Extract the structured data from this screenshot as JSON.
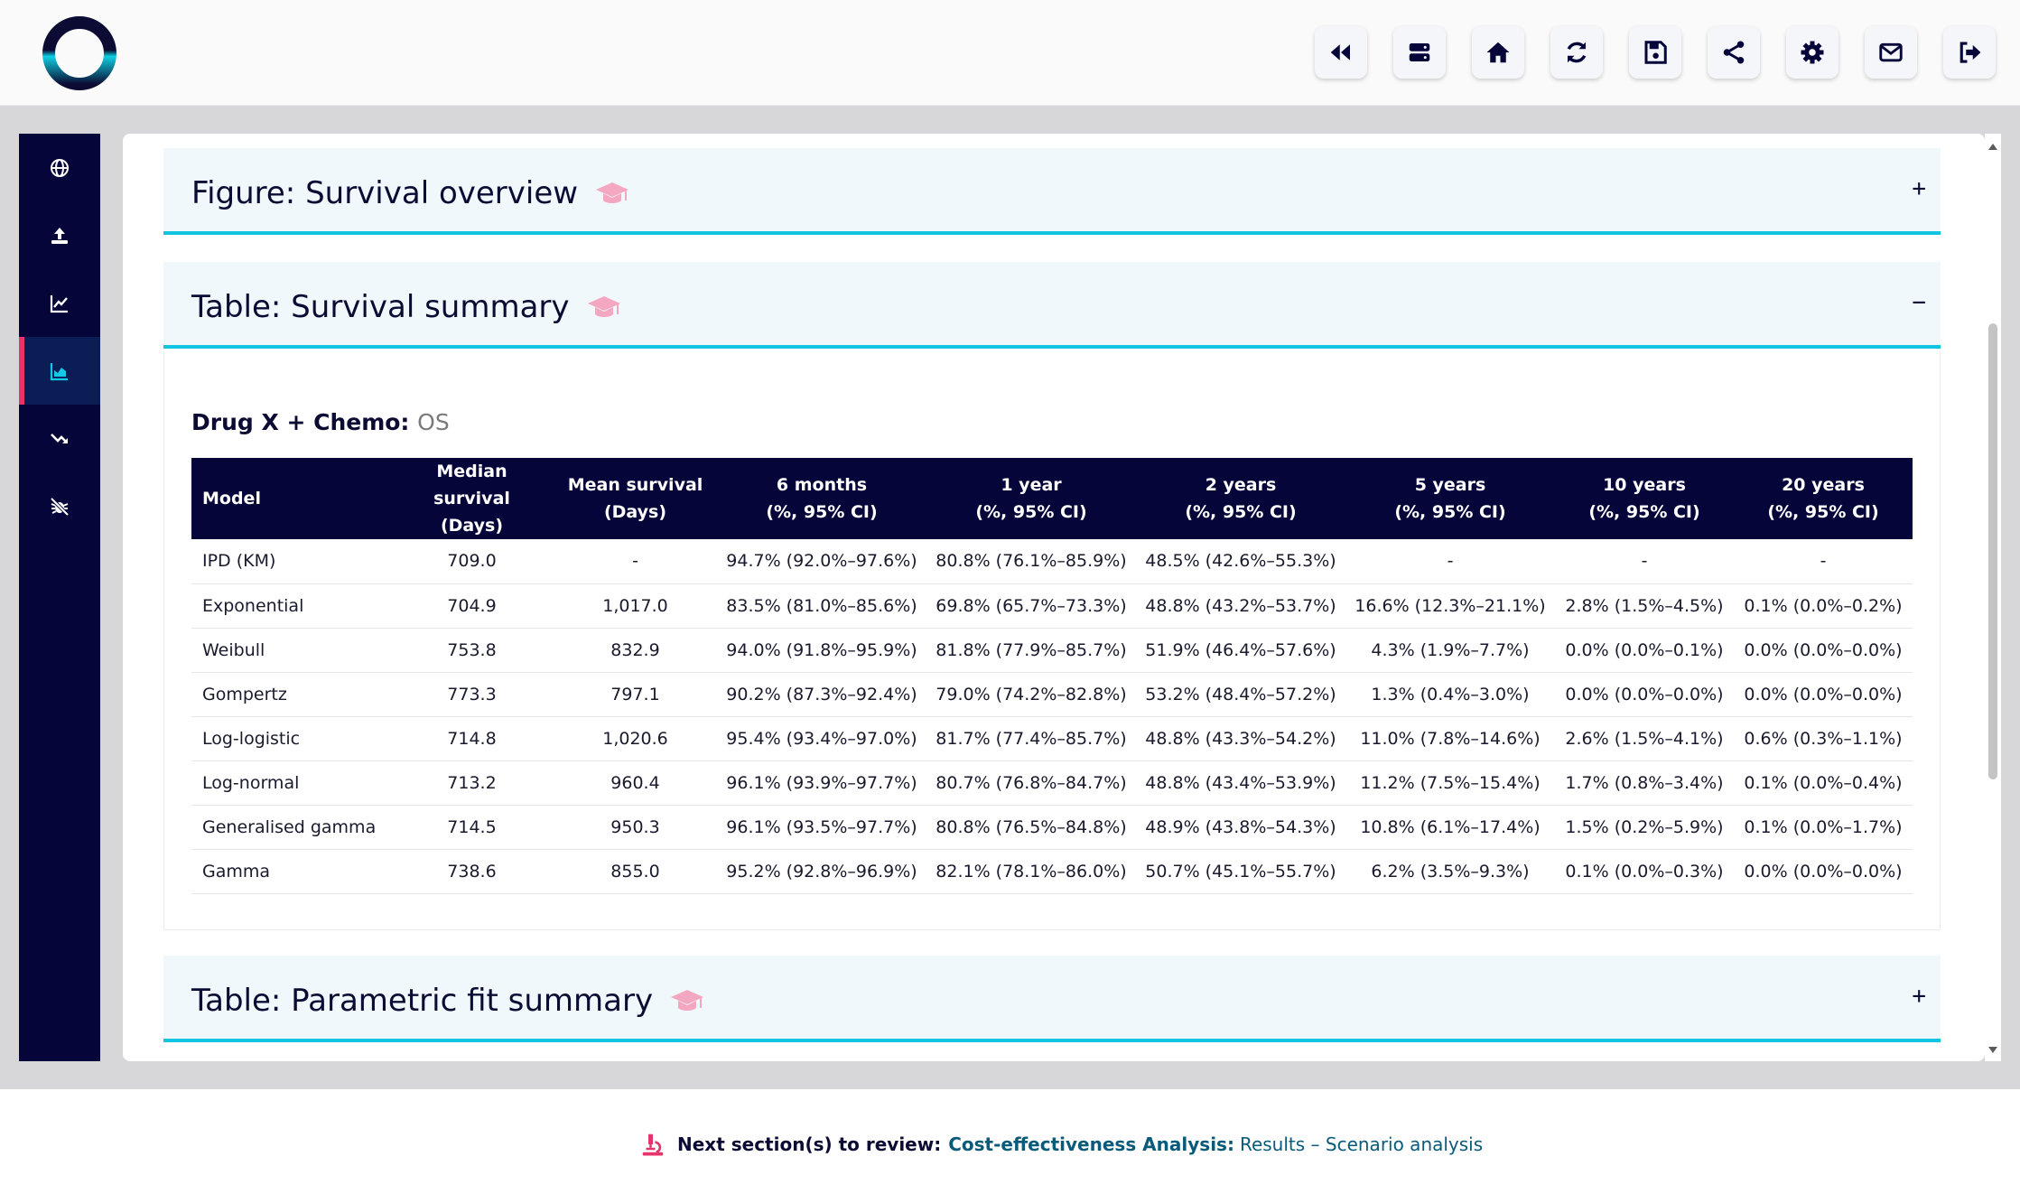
{
  "toolbar": {
    "buttons": [
      "rewind-icon",
      "server-icon",
      "home-icon",
      "refresh-icon",
      "save-icon",
      "share-icon",
      "gear-icon",
      "mail-icon",
      "logout-icon"
    ]
  },
  "sidebar": {
    "items": [
      "globe-icon",
      "upload-icon",
      "line-chart-icon",
      "area-chart-icon",
      "trend-down-icon",
      "bug-icon"
    ],
    "active_index": 3
  },
  "sections": {
    "figure": {
      "title": "Figure: Survival overview",
      "toggle": "+"
    },
    "table": {
      "title": "Table: Survival summary",
      "toggle": "−"
    },
    "fit": {
      "title": "Table: Parametric fit summary",
      "toggle": "+"
    }
  },
  "survival_table": {
    "treatment": "Drug X + Chemo:",
    "endpoint": "OS",
    "headers": {
      "model": "Model",
      "median_1": "Median survival",
      "median_2": "(Days)",
      "mean_1": "Mean survival",
      "mean_2": "(Days)",
      "m6_1": "6 months",
      "m6_2": "(%, 95% CI)",
      "y1_1": "1 year",
      "y1_2": "(%, 95% CI)",
      "y2_1": "2 years",
      "y2_2": "(%, 95% CI)",
      "y5_1": "5 years",
      "y5_2": "(%, 95% CI)",
      "y10_1": "10 years",
      "y10_2": "(%, 95% CI)",
      "y20_1": "20 years",
      "y20_2": "(%, 95% CI)"
    },
    "rows": [
      [
        "IPD (KM)",
        "709.0",
        "-",
        "94.7% (92.0%–97.6%)",
        "80.8% (76.1%–85.9%)",
        "48.5% (42.6%–55.3%)",
        "-",
        "-",
        "-"
      ],
      [
        "Exponential",
        "704.9",
        "1,017.0",
        "83.5% (81.0%–85.6%)",
        "69.8% (65.7%–73.3%)",
        "48.8% (43.2%–53.7%)",
        "16.6% (12.3%–21.1%)",
        "2.8% (1.5%–4.5%)",
        "0.1% (0.0%–0.2%)"
      ],
      [
        "Weibull",
        "753.8",
        "832.9",
        "94.0% (91.8%–95.9%)",
        "81.8% (77.9%–85.7%)",
        "51.9% (46.4%–57.6%)",
        "4.3% (1.9%–7.7%)",
        "0.0% (0.0%–0.1%)",
        "0.0% (0.0%–0.0%)"
      ],
      [
        "Gompertz",
        "773.3",
        "797.1",
        "90.2% (87.3%–92.4%)",
        "79.0% (74.2%–82.8%)",
        "53.2% (48.4%–57.2%)",
        "1.3% (0.4%–3.0%)",
        "0.0% (0.0%–0.0%)",
        "0.0% (0.0%–0.0%)"
      ],
      [
        "Log-logistic",
        "714.8",
        "1,020.6",
        "95.4% (93.4%–97.0%)",
        "81.7% (77.4%–85.7%)",
        "48.8% (43.3%–54.2%)",
        "11.0% (7.8%–14.6%)",
        "2.6% (1.5%–4.1%)",
        "0.6% (0.3%–1.1%)"
      ],
      [
        "Log-normal",
        "713.2",
        "960.4",
        "96.1% (93.9%–97.7%)",
        "80.7% (76.8%–84.7%)",
        "48.8% (43.4%–53.9%)",
        "11.2% (7.5%–15.4%)",
        "1.7% (0.8%–3.4%)",
        "0.1% (0.0%–0.4%)"
      ],
      [
        "Generalised gamma",
        "714.5",
        "950.3",
        "96.1% (93.5%–97.7%)",
        "80.8% (76.5%–84.8%)",
        "48.9% (43.8%–54.3%)",
        "10.8% (6.1%–17.4%)",
        "1.5% (0.2%–5.9%)",
        "0.1% (0.0%–1.7%)"
      ],
      [
        "Gamma",
        "738.6",
        "855.0",
        "95.2% (92.8%–96.9%)",
        "82.1% (78.1%–86.0%)",
        "50.7% (45.1%–55.7%)",
        "6.2% (3.5%–9.3%)",
        "0.1% (0.0%–0.3%)",
        "0.0% (0.0%–0.0%)"
      ]
    ]
  },
  "footer": {
    "label": "Next section(s) to review:",
    "section": "Cost-effectiveness Analysis:",
    "page": "Results – Scenario analysis"
  },
  "colors": {
    "navy": "#05053a",
    "accent_cyan": "#11c4e0",
    "accent_pink": "#e8336c",
    "link_teal": "#0a5a7a"
  }
}
